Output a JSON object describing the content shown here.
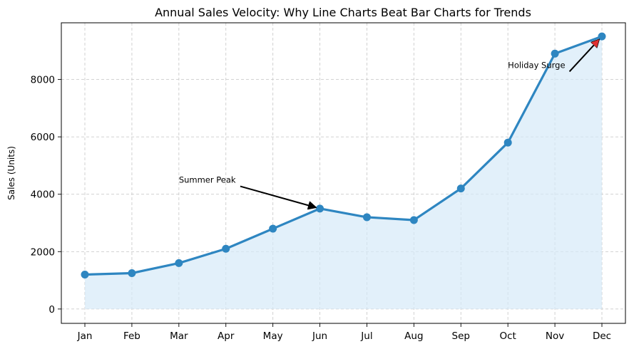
{
  "chart_data": {
    "type": "line",
    "title": "Annual Sales Velocity: Why Line Charts Beat Bar Charts for Trends",
    "xlabel": "",
    "ylabel": "Sales (Units)",
    "categories": [
      "Jan",
      "Feb",
      "Mar",
      "Apr",
      "May",
      "Jun",
      "Jul",
      "Aug",
      "Sep",
      "Oct",
      "Nov",
      "Dec"
    ],
    "series": [
      {
        "values": [
          1200,
          1250,
          1600,
          2100,
          2800,
          3500,
          3200,
          3100,
          4200,
          5800,
          8900,
          9500
        ]
      }
    ],
    "ylim": [
      -500,
      9975
    ],
    "yticks": [
      0,
      2000,
      4000,
      6000,
      8000
    ],
    "grid": true,
    "area_fill": true,
    "colors": {
      "line": "#2e86c1",
      "fill": "#d6eaf8",
      "annotation_arrow_summer": "#000000",
      "annotation_arrow_holiday": "#e03030"
    },
    "annotations": [
      {
        "text": "Summer Peak",
        "target_category": "Jun",
        "target_value": 3500,
        "text_category_offset": -3,
        "text_value": 4500
      },
      {
        "text": "Holiday Surge",
        "target_category": "Dec",
        "target_value": 9500,
        "text_category_offset": -2,
        "text_value": 8500
      }
    ]
  }
}
